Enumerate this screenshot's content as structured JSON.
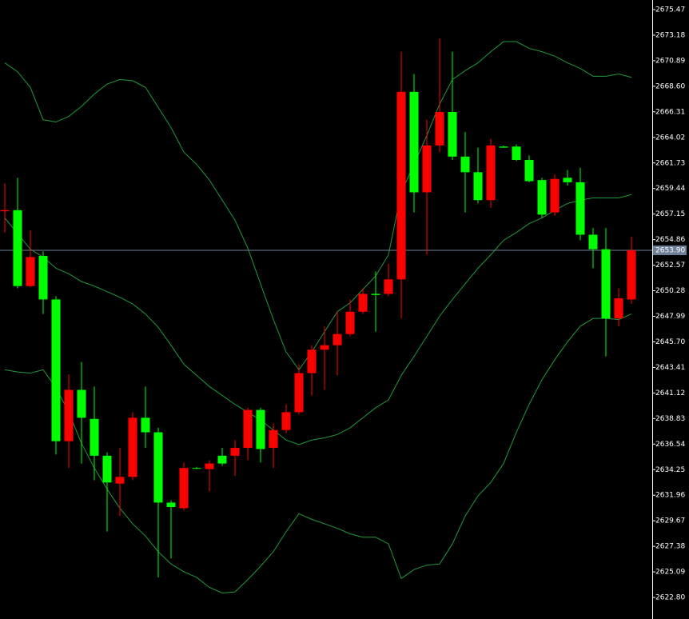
{
  "chart_data": {
    "type": "candlestick",
    "up_color": "#00ff00",
    "down_color": "#ff0000",
    "open": [
      2657.5,
      2650.7,
      2653.3,
      2649.5,
      2636.8,
      2641.4,
      2638.9,
      2635.5,
      2633.1,
      2633.6,
      2638.9,
      2637.6,
      2631.3,
      2630.9,
      2634.4,
      2634.4,
      2634.8,
      2634.8,
      2636.2,
      2639.6,
      2636.1,
      2637.8,
      2639.4,
      2642.9,
      2645.0,
      2645.4,
      2646.4,
      2648.4,
      2650.0,
      2649.9,
      2651.3,
      2668.1,
      2659.1,
      2663.3,
      2666.3,
      2662.3,
      2660.9,
      2658.4,
      2663.3,
      2663.1,
      2662.0,
      2660.1,
      2657.1,
      2660.3,
      2660.0,
      2655.3,
      2654.0,
      2647.8,
      2649.6,
      2653.9
    ],
    "high": [
      2659.9,
      2660.4,
      2655.7,
      2653.8,
      2649.8,
      2642.8,
      2643.9,
      2641.7,
      2635.8,
      2636.2,
      2639.4,
      2641.7,
      2638.0,
      2631.5,
      2634.9,
      2634.5,
      2635.1,
      2636.2,
      2636.9,
      2639.8,
      2639.8,
      2638.4,
      2640.1,
      2643.7,
      2645.4,
      2647.1,
      2648.4,
      2649.5,
      2650.5,
      2652.0,
      2652.7,
      2671.7,
      2669.7,
      2665.6,
      2672.9,
      2671.7,
      2664.5,
      2663.1,
      2663.9,
      2663.3,
      2663.4,
      2662.4,
      2660.4,
      2660.7,
      2661.1,
      2661.3,
      2655.9,
      2655.9,
      2650.5,
      2655.1
    ],
    "low": [
      2655.5,
      2650.5,
      2650.6,
      2648.2,
      2635.6,
      2634.4,
      2634.8,
      2633.3,
      2628.7,
      2630.1,
      2633.3,
      2636.2,
      2624.6,
      2626.3,
      2630.6,
      2634.3,
      2632.3,
      2634.6,
      2633.7,
      2635.1,
      2634.9,
      2634.4,
      2637.5,
      2639.2,
      2640.9,
      2641.4,
      2642.7,
      2646.2,
      2648.2,
      2646.6,
      2649.8,
      2647.8,
      2657.3,
      2653.5,
      2662.7,
      2662.0,
      2657.3,
      2658.1,
      2657.7,
      2663.1,
      2661.9,
      2660.0,
      2656.8,
      2657.0,
      2659.7,
      2654.8,
      2652.3,
      2644.4,
      2647.1,
      2649.1
    ],
    "close": [
      2657.4,
      2657.5,
      2650.7,
      2653.4,
      2649.5,
      2636.8,
      2641.4,
      2638.8,
      2635.5,
      2633.0,
      2633.6,
      2638.9,
      2637.6,
      2631.3,
      2630.8,
      2634.4,
      2634.3,
      2635.5,
      2635.5,
      2636.2,
      2639.6,
      2636.2,
      2637.8,
      2639.4,
      2642.9,
      2645.0,
      2645.4,
      2646.4,
      2648.4,
      2650.0,
      2650.0,
      2651.3,
      2668.1,
      2659.1,
      2663.3,
      2666.3,
      2662.3,
      2660.9,
      2658.4,
      2663.2,
      2663.2,
      2662.0,
      2660.2,
      2657.3,
      2660.4,
      2660.0,
      2655.3,
      2654.0,
      2647.8,
      2649.5
    ],
    "lines": [
      {
        "color": "#1f9a3a",
        "values": [
          2670.7,
          2669.9,
          2668.5,
          2665.6,
          2665.4,
          2665.9,
          2666.8,
          2667.9,
          2668.8,
          2669.2,
          2669.1,
          2668.5,
          2666.7,
          2664.9,
          2662.7,
          2661.6,
          2660.2,
          2658.4,
          2656.6,
          2654.1,
          2650.9,
          2647.7,
          2644.8,
          2643.2,
          2644.8,
          2646.6,
          2648.4,
          2649.2,
          2650.4,
          2651.6,
          2653.5,
          2659.1,
          2661.6,
          2664.2,
          2667.0,
          2669.2,
          2670.0,
          2670.7,
          2671.7,
          2672.6,
          2672.6,
          2672.0,
          2671.7,
          2671.3,
          2670.7,
          2670.2,
          2669.5,
          2669.5,
          2669.7,
          2669.4
        ]
      },
      {
        "color": "#1f9a3a",
        "values": [
          2656.8,
          2655.4,
          2654.0,
          2653.3,
          2652.3,
          2651.8,
          2651.1,
          2650.7,
          2650.2,
          2649.7,
          2649.1,
          2648.2,
          2647.0,
          2645.4,
          2643.7,
          2642.7,
          2641.7,
          2640.9,
          2640.1,
          2639.4,
          2638.7,
          2637.8,
          2636.9,
          2636.5,
          2636.9,
          2637.1,
          2637.4,
          2638.0,
          2638.9,
          2639.8,
          2640.5,
          2642.7,
          2644.4,
          2646.2,
          2648.0,
          2649.5,
          2650.9,
          2652.3,
          2653.5,
          2654.8,
          2655.5,
          2656.3,
          2656.8,
          2657.5,
          2658.1,
          2658.4,
          2658.6,
          2658.6,
          2658.6,
          2658.9
        ]
      },
      {
        "color": "#1f9a3a",
        "values": [
          2643.2,
          2643.0,
          2642.9,
          2643.2,
          2641.6,
          2639.4,
          2636.6,
          2634.4,
          2632.5,
          2630.8,
          2629.4,
          2628.3,
          2626.9,
          2625.8,
          2625.1,
          2624.6,
          2623.7,
          2623.2,
          2623.3,
          2624.4,
          2625.6,
          2626.9,
          2628.7,
          2630.3,
          2629.8,
          2629.4,
          2629.0,
          2628.5,
          2628.2,
          2628.2,
          2627.6,
          2624.5,
          2625.3,
          2625.7,
          2625.8,
          2627.6,
          2630.1,
          2631.9,
          2633.1,
          2634.8,
          2637.6,
          2640.1,
          2642.3,
          2644.1,
          2645.7,
          2647.1,
          2647.8,
          2647.8,
          2647.7,
          2648.2
        ]
      }
    ],
    "current_price": {
      "value": 2653.9,
      "label": "2653.90"
    },
    "current_price_color": "#6f7f99",
    "ylim": [
      2620.87,
      2676.33
    ],
    "yticks": [
      2675.47,
      2673.18,
      2670.89,
      {
        "value": 2668.6,
        "label": "2668.60"
      },
      2666.31,
      2664.02,
      2661.73,
      2659.44,
      2657.15,
      2654.86,
      2652.57,
      2650.28,
      2647.99,
      {
        "value": 2645.7,
        "label": "2645.70"
      },
      2643.41,
      2641.12,
      2638.83,
      2636.54,
      2634.25,
      2631.96,
      2629.67,
      2627.38,
      2625.09,
      {
        "value": 2622.8,
        "label": "2622.80"
      }
    ]
  }
}
